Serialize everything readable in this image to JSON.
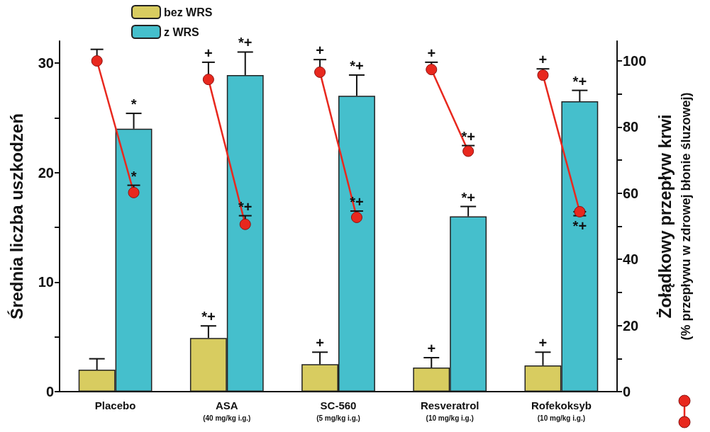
{
  "chart_data": {
    "type": "bar",
    "ylabel": "Średnia liczba uszkodzeń",
    "y2label": "Żołądkowy przepływ krwi\n(% przepływu w zdrowej błonie śluzowej)",
    "categories": [
      "Placebo",
      "ASA\n(40 mg/kg i.g.)",
      "SC-560\n(5 mg/kg i.g.)",
      "Resveratrol\n(10 mg/kg i.g.)",
      "Rofekoksyb\n(10 mg/kg i.g.)"
    ],
    "series": [
      {
        "name": "bez WRS",
        "color": "#d8cc60",
        "values": [
          2.0,
          4.9,
          2.5,
          2.2,
          2.4
        ],
        "errors": [
          [
            2.0,
            3.0
          ],
          [
            4.9,
            6.0
          ],
          [
            2.5,
            3.6
          ],
          [
            2.2,
            3.1
          ],
          [
            2.4,
            3.6
          ]
        ],
        "value_labels": [
          null,
          "*+",
          "+",
          "+",
          "+"
        ]
      },
      {
        "name": "z WRS",
        "color": "#45bfcc",
        "values": [
          24.0,
          28.9,
          27.0,
          16.0,
          26.5
        ],
        "errors": [
          [
            24.0,
            25.4
          ],
          [
            28.9,
            31.0
          ],
          [
            27.0,
            28.9
          ],
          [
            16.0,
            16.9
          ],
          [
            26.5,
            27.5
          ]
        ],
        "value_labels": [
          "*",
          "*+",
          "*+",
          "*+",
          "*+"
        ]
      },
      {
        "type": "scatter",
        "axis": "y2",
        "color": "#e8281e",
        "x": [
          "Placebo",
          "ASA\n(40 mg/kg i.g.)",
          "SC-560\n(5 mg/kg i.g.)",
          "Resveratrol\n(10 mg/kg i.g.)",
          "Rofekoksyb\n(10 mg/kg i.g.)"
        ],
        "values": [
          100,
          94.4,
          96.6,
          97.4,
          95.7
        ],
        "errors": [
          [
            100,
            103.5
          ],
          [
            94.4,
            99.6
          ],
          [
            96.6,
            100.4
          ],
          [
            97.4,
            99.6
          ],
          [
            95.7,
            97.6
          ]
        ],
        "value_labels": [
          null,
          "+",
          "+",
          "+",
          "+"
        ]
      },
      {
        "type": "scatter",
        "axis": "y2",
        "color": "#e8281e",
        "x": [
          "Placebo",
          "ASA\n(40 mg/kg i.g.)",
          "SC-560\n(5 mg/kg i.g.)",
          "Resveratrol\n(10 mg/kg i.g.)",
          "Rofekoksyb\n(10 mg/kg i.g.)"
        ],
        "values": [
          60.2,
          50.6,
          52.7,
          72.7,
          54.4
        ],
        "errors": [
          [
            60.2,
            62.4
          ],
          [
            50.6,
            53.2
          ],
          [
            52.7,
            54.6
          ],
          [
            72.7,
            74.4
          ],
          [
            53.2,
            54.4
          ]
        ],
        "value_labels": [
          "*",
          "*+",
          "*+",
          "*+",
          "*+"
        ]
      }
    ],
    "ylim": [
      0,
      32
    ],
    "yticks": [
      0,
      {
        "value": 5,
        "label": null
      },
      10,
      {
        "value": 15,
        "label": null
      },
      20,
      {
        "value": 25,
        "label": null
      },
      30
    ],
    "y2lim": [
      0,
      106
    ],
    "y2ticks": [
      0,
      {
        "value": 10,
        "label": null
      },
      20,
      {
        "value": 30,
        "label": null
      },
      40,
      {
        "value": 50,
        "label": null
      },
      60,
      {
        "value": 70,
        "label": null
      },
      80,
      {
        "value": 90,
        "label": null
      },
      100
    ],
    "grid": false,
    "legend": "top left",
    "marker": "circle"
  }
}
